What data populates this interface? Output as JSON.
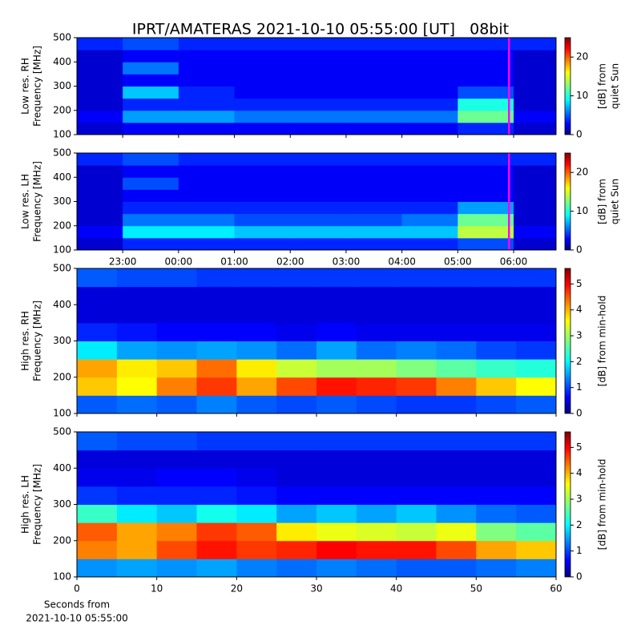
{
  "title": "IPRT/AMATERAS 2021-10-10 05:55:00 [UT]   08bit",
  "chart_data": [
    {
      "type": "heatmap",
      "colormap": "jet",
      "ylabel": [
        "Low res. RH",
        "Frequency [MHz]"
      ],
      "xlim": [
        22.18,
        30.76
      ],
      "ylim": [
        100,
        500
      ],
      "yticks": [
        100,
        200,
        300,
        400,
        500
      ],
      "xticks": [
        23,
        24,
        25,
        26,
        27,
        28,
        29,
        30
      ],
      "xtick_labels": false,
      "x_edges": [
        22.18,
        23,
        24,
        25,
        26,
        27,
        28,
        29,
        30,
        30.76
      ],
      "y_edges": [
        100,
        150,
        200,
        250,
        300,
        350,
        400,
        450,
        500
      ],
      "z": [
        [
          2,
          3,
          3,
          3,
          3,
          3,
          3,
          4,
          2
        ],
        [
          3,
          7,
          7,
          6,
          6,
          6,
          6,
          12,
          3
        ],
        [
          2,
          4,
          4,
          4,
          4,
          4,
          4,
          10,
          2
        ],
        [
          2,
          8,
          4,
          3,
          3,
          3,
          3,
          5,
          2
        ],
        [
          2,
          3,
          3,
          3,
          3,
          3,
          3,
          3,
          2
        ],
        [
          2,
          6,
          3,
          3,
          3,
          3,
          3,
          3,
          2
        ],
        [
          2,
          3,
          3,
          3,
          3,
          3,
          3,
          3,
          2
        ],
        [
          4,
          5,
          4,
          4,
          4,
          4,
          4,
          4,
          4
        ]
      ],
      "marker_x": 29.917,
      "marker_color": "#ff00ff",
      "colorbar": {
        "label": [
          "[dB] from",
          "quiet Sun"
        ],
        "lim": [
          0,
          25
        ],
        "ticks": [
          0,
          10,
          20
        ]
      }
    },
    {
      "type": "heatmap",
      "colormap": "jet",
      "ylabel": [
        "Low res. LH",
        "Frequency [MHz]"
      ],
      "xlim": [
        22.18,
        30.76
      ],
      "ylim": [
        100,
        500
      ],
      "yticks": [
        100,
        200,
        300,
        400,
        500
      ],
      "xticks": [
        {
          "value": 23,
          "label": "23:00"
        },
        {
          "value": 24,
          "label": "00:00"
        },
        {
          "value": 25,
          "label": "01:00"
        },
        {
          "value": 26,
          "label": "02:00"
        },
        {
          "value": 27,
          "label": "03:00"
        },
        {
          "value": 28,
          "label": "04:00"
        },
        {
          "value": 29,
          "label": "05:00"
        },
        {
          "value": 30,
          "label": "06:00"
        }
      ],
      "xtick_labels": true,
      "x_edges": [
        22.18,
        23,
        24,
        25,
        26,
        27,
        28,
        29,
        30,
        30.76
      ],
      "y_edges": [
        100,
        150,
        200,
        250,
        300,
        350,
        400,
        450,
        500
      ],
      "z": [
        [
          2,
          4,
          4,
          4,
          4,
          4,
          4,
          5,
          2
        ],
        [
          3,
          9,
          9,
          8,
          8,
          8,
          8,
          14,
          3
        ],
        [
          2,
          6,
          6,
          5,
          5,
          5,
          6,
          12,
          2
        ],
        [
          2,
          4,
          4,
          4,
          4,
          4,
          4,
          7,
          2
        ],
        [
          2,
          3,
          3,
          3,
          3,
          3,
          3,
          3,
          2
        ],
        [
          2,
          5,
          3,
          3,
          3,
          3,
          3,
          3,
          2
        ],
        [
          2,
          3,
          3,
          3,
          3,
          3,
          3,
          3,
          2
        ],
        [
          4,
          5,
          4,
          4,
          4,
          4,
          4,
          4,
          4
        ]
      ],
      "marker_x": 29.917,
      "marker_color": "#ff00ff",
      "colorbar": {
        "label": [
          "[dB] from",
          "quiet Sun"
        ],
        "lim": [
          0,
          25
        ],
        "ticks": [
          0,
          10,
          20
        ]
      }
    },
    {
      "type": "heatmap",
      "colormap": "jet",
      "ylabel": [
        "High res. RH",
        "Frequency [MHz]"
      ],
      "xlim": [
        0,
        60
      ],
      "ylim": [
        100,
        500
      ],
      "yticks": [
        100,
        200,
        300,
        400,
        500
      ],
      "xticks": [
        0,
        10,
        20,
        30,
        40,
        50,
        60
      ],
      "xtick_labels": false,
      "x_edges": [
        0,
        5,
        10,
        15,
        20,
        25,
        30,
        35,
        40,
        45,
        50,
        55,
        60
      ],
      "y_edges": [
        100,
        150,
        200,
        250,
        300,
        350,
        400,
        450,
        500
      ],
      "z": [
        [
          1.2,
          1.3,
          1.2,
          1.4,
          1.2,
          1.1,
          1.2,
          1.1,
          1.0,
          1.0,
          1.1,
          1.2
        ],
        [
          3.8,
          3.5,
          4.2,
          4.6,
          4.0,
          4.5,
          4.8,
          4.7,
          4.6,
          4.2,
          3.8,
          3.5
        ],
        [
          4.0,
          3.6,
          3.8,
          4.3,
          3.6,
          3.2,
          3.0,
          3.0,
          2.8,
          2.6,
          2.4,
          2.3
        ],
        [
          2.0,
          1.6,
          1.5,
          1.6,
          1.5,
          1.3,
          1.6,
          1.3,
          1.4,
          1.3,
          1.1,
          1.0
        ],
        [
          0.9,
          0.8,
          0.7,
          0.7,
          0.7,
          0.6,
          0.7,
          0.6,
          0.6,
          0.6,
          0.6,
          0.6
        ],
        [
          0.5,
          0.5,
          0.5,
          0.5,
          0.5,
          0.5,
          0.5,
          0.5,
          0.5,
          0.5,
          0.5,
          0.5
        ],
        [
          0.5,
          0.5,
          0.5,
          0.5,
          0.5,
          0.5,
          0.5,
          0.5,
          0.5,
          0.5,
          0.5,
          0.5
        ],
        [
          1.2,
          1.1,
          1.1,
          1.0,
          1.0,
          1.0,
          1.0,
          1.0,
          1.0,
          1.0,
          1.0,
          1.0
        ]
      ],
      "colorbar": {
        "label": [
          "[dB] from min-hold"
        ],
        "lim": [
          0,
          5.6
        ],
        "ticks": [
          0,
          1,
          2,
          3,
          4,
          5
        ]
      }
    },
    {
      "type": "heatmap",
      "colormap": "jet",
      "ylabel": [
        "High res. LH",
        "Frequency [MHz]"
      ],
      "xlim": [
        0,
        60
      ],
      "ylim": [
        100,
        500
      ],
      "yticks": [
        100,
        200,
        300,
        400,
        500
      ],
      "xticks": [
        0,
        10,
        20,
        30,
        40,
        50,
        60
      ],
      "xtick_labels": true,
      "xlabel": [
        "Seconds from",
        "2021-10-10 05:55:00"
      ],
      "x_edges": [
        0,
        5,
        10,
        15,
        20,
        25,
        30,
        35,
        40,
        45,
        50,
        55,
        60
      ],
      "y_edges": [
        100,
        150,
        200,
        250,
        300,
        350,
        400,
        450,
        500
      ],
      "z": [
        [
          1.5,
          1.6,
          1.5,
          1.6,
          1.4,
          1.3,
          1.4,
          1.3,
          1.2,
          1.2,
          1.3,
          1.4
        ],
        [
          4.2,
          4.0,
          4.5,
          4.8,
          4.6,
          4.7,
          4.9,
          4.8,
          4.8,
          4.5,
          4.0,
          3.8
        ],
        [
          4.4,
          4.0,
          4.2,
          4.6,
          4.4,
          3.6,
          3.4,
          3.3,
          3.2,
          3.4,
          2.8,
          2.6
        ],
        [
          2.4,
          2.0,
          1.8,
          2.2,
          2.0,
          1.6,
          1.8,
          1.6,
          1.8,
          1.5,
          1.3,
          1.2
        ],
        [
          1.0,
          0.9,
          0.9,
          0.9,
          0.8,
          0.7,
          0.7,
          0.7,
          0.7,
          0.7,
          0.7,
          0.7
        ],
        [
          0.6,
          0.6,
          0.7,
          0.7,
          0.6,
          0.5,
          0.5,
          0.5,
          0.5,
          0.5,
          0.5,
          0.5
        ],
        [
          0.5,
          0.5,
          0.5,
          0.5,
          0.5,
          0.5,
          0.5,
          0.5,
          0.5,
          0.5,
          0.5,
          0.5
        ],
        [
          1.2,
          1.1,
          1.1,
          1.0,
          1.0,
          1.0,
          1.0,
          1.0,
          1.0,
          1.0,
          1.0,
          1.0
        ]
      ],
      "colorbar": {
        "label": [
          "[dB] from min-hold"
        ],
        "lim": [
          0,
          5.6
        ],
        "ticks": [
          0,
          1,
          2,
          3,
          4,
          5
        ]
      }
    }
  ]
}
